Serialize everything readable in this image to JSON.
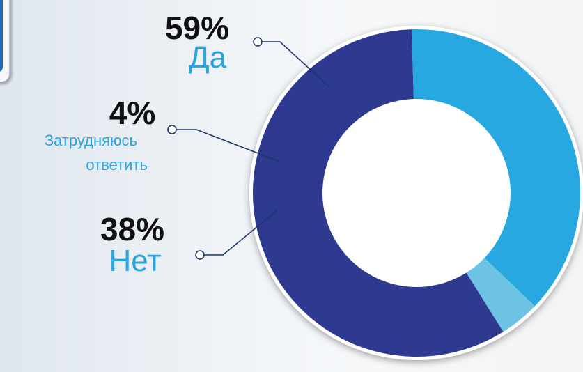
{
  "colors": {
    "background": "#eef2f6",
    "tab_accent": "#2068b5",
    "da": "#2e3990",
    "zatrudnyayus": "#6cc3e3",
    "net": "#27a8e0",
    "leader_line": "#1c3768"
  },
  "chart_data": {
    "type": "pie",
    "donut": true,
    "slices": [
      {
        "label": "Да",
        "percent_label": "59%",
        "value": 59
      },
      {
        "label": "Затрудняюсь ответить",
        "label_lines": [
          "Затрудняюсь",
          "ответить"
        ],
        "percent_label": "4%",
        "value": 4
      },
      {
        "label": "Нет",
        "percent_label": "38%",
        "value": 38
      }
    ]
  }
}
